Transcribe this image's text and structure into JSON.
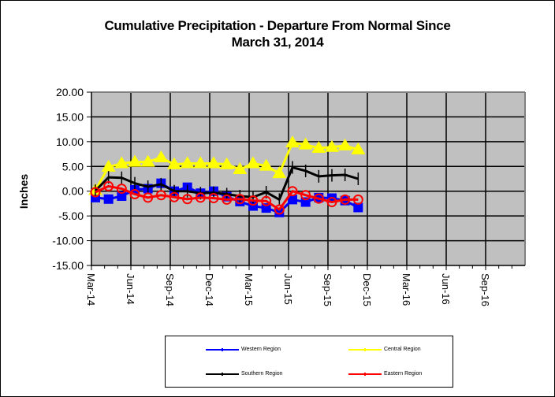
{
  "chart_data": {
    "type": "line",
    "title": "Cumulative Precipitation - Departure From Normal Since",
    "subtitle": "March 31, 2014",
    "xlabel": "",
    "ylabel": "Inches",
    "ylim": [
      -15,
      20
    ],
    "yticks": [
      20,
      15,
      10,
      5,
      0,
      -5,
      -10,
      -15
    ],
    "ytick_labels": [
      "20.00",
      "15.00",
      "10.00",
      "5.00",
      "0.00",
      "-5.00",
      "-10.00",
      "-15.00"
    ],
    "xtick_labels": [
      "Mar-14",
      "Jun-14",
      "Sep-14",
      "Dec-14",
      "Mar-15",
      "Jun-15",
      "Sep-15",
      "Dec-15",
      "Mar-16",
      "Jun-16",
      "Sep-16"
    ],
    "x_range_months": [
      0,
      33
    ],
    "grid": true,
    "plot_background": "#c0c0c0",
    "legend_position": "bottom",
    "x": [
      "Mar-14",
      "Apr-14",
      "May-14",
      "Jun-14",
      "Jul-14",
      "Aug-14",
      "Sep-14",
      "Oct-14",
      "Nov-14",
      "Dec-14",
      "Jan-15",
      "Feb-15",
      "Mar-15",
      "Apr-15",
      "May-15",
      "Jun-15",
      "Jul-15",
      "Aug-15",
      "Sep-15",
      "Oct-15",
      "Nov-15"
    ],
    "series": [
      {
        "name": "Western Region",
        "color": "#0000ff",
        "marker": "square",
        "values": [
          -1.3,
          -1.6,
          -1.0,
          0.3,
          0.5,
          1.6,
          0.0,
          0.8,
          -0.4,
          0.0,
          -1.1,
          -2.1,
          -3.0,
          -3.4,
          -4.3,
          -1.7,
          -2.2,
          -1.3,
          -1.4,
          -1.9,
          -3.3
        ]
      },
      {
        "name": "Central Region",
        "color": "#ffff00",
        "marker": "triangle",
        "values": [
          0.2,
          4.9,
          5.6,
          5.9,
          5.9,
          6.8,
          5.4,
          5.6,
          5.6,
          5.6,
          5.4,
          4.4,
          5.6,
          5.1,
          3.6,
          9.8,
          9.4,
          8.7,
          8.9,
          9.2,
          8.4
        ]
      },
      {
        "name": "Southern Region",
        "color": "#000000",
        "marker": "plus",
        "values": [
          0.1,
          2.8,
          2.7,
          1.6,
          0.9,
          1.4,
          0.0,
          0.0,
          -0.4,
          -0.3,
          -0.6,
          -1.0,
          -1.2,
          -0.2,
          -1.7,
          4.8,
          4.1,
          3.0,
          3.2,
          3.3,
          2.5
        ]
      },
      {
        "name": "Eastern Region",
        "color": "#ff0000",
        "marker": "circle",
        "values": [
          -0.2,
          1.0,
          0.5,
          -0.6,
          -1.3,
          -0.8,
          -1.2,
          -1.6,
          -1.3,
          -1.4,
          -1.7,
          -1.6,
          -1.9,
          -2.0,
          -3.7,
          0.0,
          -0.8,
          -1.5,
          -2.2,
          -1.7,
          -1.7
        ]
      }
    ]
  }
}
